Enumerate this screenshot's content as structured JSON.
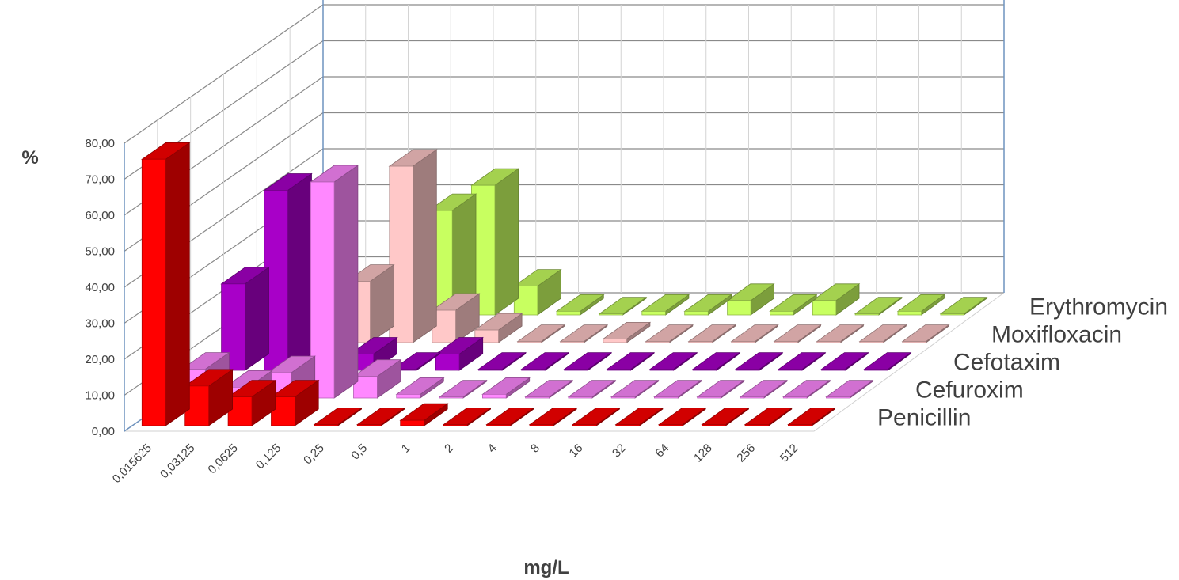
{
  "chart_data": {
    "type": "bar",
    "subtype": "3d-clustered-depth",
    "title": "",
    "xlabel": "mg/L",
    "ylabel": "%",
    "ylim": [
      0,
      80
    ],
    "yticks": [
      "0,00",
      "10,00",
      "20,00",
      "30,00",
      "40,00",
      "50,00",
      "60,00",
      "70,00",
      "80,00"
    ],
    "categories": [
      "0,015625",
      "0,03125",
      "0,0625",
      "0,125",
      "0,25",
      "0,5",
      "1",
      "2",
      "4",
      "8",
      "16",
      "32",
      "64",
      "128",
      "256",
      "512"
    ],
    "grid": true,
    "series": [
      {
        "name": "Penicillin",
        "color": "#ff0000",
        "values": [
          74.0,
          11.0,
          8.0,
          8.0,
          0.3,
          0.3,
          1.5,
          0.3,
          0.3,
          0.3,
          0.3,
          0.3,
          0.3,
          0.3,
          0.3,
          0.3
        ]
      },
      {
        "name": "Cefuroxim",
        "color": "#ff88ff",
        "values": [
          8.0,
          3.0,
          7.0,
          60.0,
          6.0,
          1.0,
          0.3,
          1.0,
          0.3,
          0.3,
          0.3,
          0.3,
          0.3,
          0.3,
          0.3,
          0.3
        ]
      },
      {
        "name": "Cefotaxim",
        "color": "#a800c8",
        "values": [
          24.0,
          50.0,
          15.0,
          4.5,
          0.3,
          4.5,
          0.3,
          0.3,
          0.3,
          0.3,
          0.3,
          0.3,
          0.3,
          0.3,
          0.3,
          0.3
        ]
      },
      {
        "name": "Moxifloxacin",
        "color": "#ffc8c8",
        "values": [
          0,
          0,
          17.0,
          49.0,
          9.0,
          3.5,
          0.3,
          0.3,
          1.0,
          0.3,
          0.3,
          0.3,
          0.3,
          0.3,
          0.3,
          0.3
        ]
      },
      {
        "name": "Erythromycin",
        "color": "#c8ff60",
        "values": [
          0,
          0,
          1.0,
          29.0,
          36.0,
          8.0,
          1.0,
          0.3,
          1.0,
          1.0,
          4.0,
          1.0,
          4.0,
          0.3,
          1.0,
          0.3
        ]
      }
    ]
  }
}
